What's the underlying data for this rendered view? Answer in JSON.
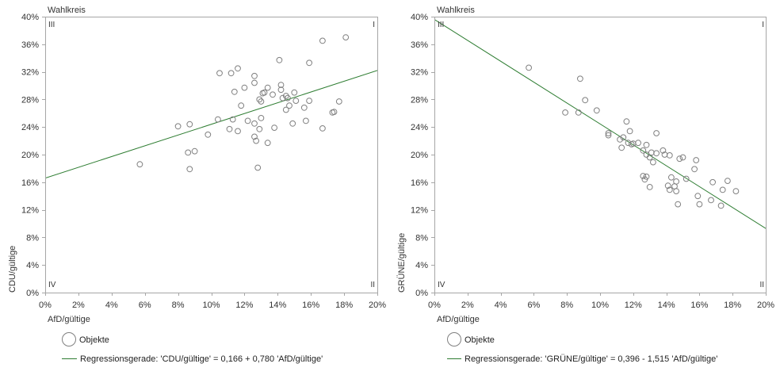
{
  "chart_data": [
    {
      "type": "scatter",
      "corner_label": "Wahlkreis",
      "quadrant_labels": {
        "top_left": "III",
        "top_right": "I",
        "bottom_left": "IV",
        "bottom_right": "II"
      },
      "xlabel": "AfD/gültige",
      "ylabel": "CDU/gültige",
      "xlim": [
        0,
        20
      ],
      "ylim": [
        0,
        40
      ],
      "xticks": [
        0,
        2,
        4,
        6,
        8,
        10,
        12,
        14,
        16,
        18,
        20
      ],
      "xtick_labels": [
        "0%",
        "2%",
        "4%",
        "6%",
        "8%",
        "10%",
        "12%",
        "14%",
        "16%",
        "18%",
        "20%"
      ],
      "yticks": [
        0,
        4,
        8,
        12,
        16,
        20,
        24,
        28,
        32,
        36,
        40
      ],
      "ytick_labels": [
        "0%",
        "4%",
        "8%",
        "12%",
        "16%",
        "20%",
        "24%",
        "28%",
        "32%",
        "36%",
        "40%"
      ],
      "grid": false,
      "legend_position": "below",
      "series": [
        {
          "name": "Objekte",
          "points": [
            [
              5.7,
              18.6
            ],
            [
              8.0,
              24.1
            ],
            [
              8.7,
              24.4
            ],
            [
              8.6,
              20.3
            ],
            [
              9.0,
              20.5
            ],
            [
              8.7,
              17.9
            ],
            [
              9.8,
              22.9
            ],
            [
              10.4,
              25.1
            ],
            [
              10.5,
              31.8
            ],
            [
              11.2,
              31.8
            ],
            [
              11.6,
              32.5
            ],
            [
              11.4,
              29.1
            ],
            [
              11.3,
              25.1
            ],
            [
              11.1,
              23.7
            ],
            [
              11.6,
              23.4
            ],
            [
              11.8,
              27.1
            ],
            [
              12.0,
              29.7
            ],
            [
              12.2,
              24.9
            ],
            [
              12.6,
              31.4
            ],
            [
              12.6,
              30.4
            ],
            [
              12.6,
              24.5
            ],
            [
              12.6,
              22.6
            ],
            [
              12.7,
              22.0
            ],
            [
              12.8,
              18.1
            ],
            [
              12.9,
              28.0
            ],
            [
              13.0,
              27.7
            ],
            [
              12.9,
              23.7
            ],
            [
              13.0,
              25.3
            ],
            [
              13.1,
              28.9
            ],
            [
              13.2,
              29.0
            ],
            [
              13.4,
              21.7
            ],
            [
              13.4,
              29.7
            ],
            [
              13.7,
              28.7
            ],
            [
              13.8,
              23.9
            ],
            [
              14.1,
              33.7
            ],
            [
              14.2,
              30.1
            ],
            [
              14.2,
              29.4
            ],
            [
              14.3,
              28.2
            ],
            [
              14.5,
              26.5
            ],
            [
              14.5,
              28.5
            ],
            [
              14.6,
              28.2
            ],
            [
              14.7,
              27.1
            ],
            [
              14.9,
              24.5
            ],
            [
              15.0,
              29.0
            ],
            [
              15.1,
              27.8
            ],
            [
              15.6,
              26.8
            ],
            [
              15.7,
              24.9
            ],
            [
              15.9,
              27.8
            ],
            [
              15.9,
              33.3
            ],
            [
              16.7,
              23.8
            ],
            [
              16.7,
              36.5
            ],
            [
              17.3,
              26.1
            ],
            [
              17.4,
              26.2
            ],
            [
              17.7,
              27.7
            ],
            [
              18.1,
              37.0
            ]
          ]
        }
      ],
      "regression": {
        "intercept": 0.166,
        "slope": 0.78,
        "label": "Regressionsgerade: 'CDU/gültige' = 0,166 + 0,780 'AfD/gültige'"
      },
      "colors": {
        "points": "#808080",
        "regression": "#2e7d32"
      }
    },
    {
      "type": "scatter",
      "corner_label": "Wahlkreis",
      "quadrant_labels": {
        "top_left": "III",
        "top_right": "I",
        "bottom_left": "IV",
        "bottom_right": "II"
      },
      "xlabel": "AfD/gültige",
      "ylabel": "GRÜNE/gültige",
      "xlim": [
        0,
        20
      ],
      "ylim": [
        0,
        40
      ],
      "xticks": [
        0,
        2,
        4,
        6,
        8,
        10,
        12,
        14,
        16,
        18,
        20
      ],
      "xtick_labels": [
        "0%",
        "2%",
        "4%",
        "6%",
        "8%",
        "10%",
        "12%",
        "14%",
        "16%",
        "18%",
        "20%"
      ],
      "yticks": [
        0,
        4,
        8,
        12,
        16,
        20,
        24,
        28,
        32,
        36,
        40
      ],
      "ytick_labels": [
        "0%",
        "4%",
        "8%",
        "12%",
        "16%",
        "20%",
        "24%",
        "28%",
        "32%",
        "36%",
        "40%"
      ],
      "grid": false,
      "legend_position": "below",
      "series": [
        {
          "name": "Objekte",
          "points": [
            [
              5.7,
              32.6
            ],
            [
              7.9,
              26.1
            ],
            [
              8.7,
              26.1
            ],
            [
              8.8,
              31.0
            ],
            [
              9.1,
              27.9
            ],
            [
              9.8,
              26.4
            ],
            [
              10.5,
              23.1
            ],
            [
              10.5,
              22.8
            ],
            [
              11.2,
              22.2
            ],
            [
              11.4,
              22.5
            ],
            [
              11.3,
              21.0
            ],
            [
              11.6,
              24.8
            ],
            [
              11.7,
              21.7
            ],
            [
              11.8,
              23.4
            ],
            [
              11.9,
              21.5
            ],
            [
              12.0,
              21.6
            ],
            [
              12.3,
              21.7
            ],
            [
              12.6,
              20.6
            ],
            [
              12.6,
              16.9
            ],
            [
              12.7,
              16.4
            ],
            [
              12.8,
              20.0
            ],
            [
              12.8,
              21.4
            ],
            [
              12.8,
              16.8
            ],
            [
              13.0,
              15.3
            ],
            [
              13.0,
              19.6
            ],
            [
              13.1,
              20.3
            ],
            [
              13.2,
              18.9
            ],
            [
              13.4,
              23.1
            ],
            [
              13.4,
              20.2
            ],
            [
              13.8,
              20.6
            ],
            [
              13.9,
              20.0
            ],
            [
              14.1,
              15.5
            ],
            [
              14.2,
              19.9
            ],
            [
              14.2,
              14.9
            ],
            [
              14.3,
              16.7
            ],
            [
              14.5,
              15.4
            ],
            [
              14.6,
              16.1
            ],
            [
              14.6,
              14.7
            ],
            [
              14.7,
              12.8
            ],
            [
              14.8,
              19.4
            ],
            [
              15.0,
              19.6
            ],
            [
              15.2,
              16.5
            ],
            [
              15.7,
              17.9
            ],
            [
              15.8,
              19.2
            ],
            [
              15.9,
              14.0
            ],
            [
              16.0,
              12.8
            ],
            [
              16.7,
              13.4
            ],
            [
              16.8,
              16.0
            ],
            [
              17.3,
              12.6
            ],
            [
              17.4,
              14.9
            ],
            [
              17.7,
              16.2
            ],
            [
              18.2,
              14.7
            ]
          ]
        }
      ],
      "regression": {
        "intercept": 0.396,
        "slope": -1.515,
        "label": "Regressionsgerade: 'GRÜNE/gültige' = 0,396 - 1,515 'AfD/gültige'"
      },
      "colors": {
        "points": "#808080",
        "regression": "#2e7d32"
      }
    }
  ]
}
